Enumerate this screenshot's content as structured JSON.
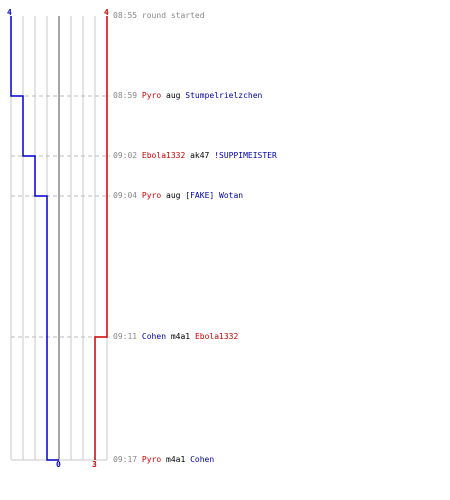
{
  "timeline": {
    "start_scores": {
      "blue": "4",
      "red": "4"
    },
    "end_scores": {
      "blue": "0",
      "red": "3"
    },
    "colors": {
      "blue": "#0000cc",
      "red": "#cc0000",
      "grid": "#c8c8c8",
      "center": "#888888",
      "dash": "#bbbbbb"
    },
    "chart_data": {
      "type": "line",
      "x_unit": "time (HH:MM)",
      "x": [
        "08:55",
        "08:59",
        "09:02",
        "09:04",
        "09:11",
        "09:17"
      ],
      "series": [
        {
          "name": "",
          "color": "#0000cc",
          "values": [
            4,
            3,
            2,
            1,
            1,
            0
          ]
        },
        {
          "name": "",
          "color": "#cc0000",
          "values": [
            4,
            4,
            4,
            4,
            3,
            3
          ]
        }
      ],
      "ylim": [
        0,
        4
      ]
    }
  },
  "events": [
    {
      "time": "08:55",
      "text": "round started"
    },
    {
      "time": "08:59",
      "killer": "Pyro",
      "weapon": "aug",
      "victim": "Stumpelrielzchen"
    },
    {
      "time": "09:02",
      "killer": "Ebola1332",
      "weapon": "ak47",
      "victim": "!SUPPIMEISTER"
    },
    {
      "time": "09:04",
      "killer": "Pyro",
      "weapon": "aug",
      "victim": "[FAKE] Wotan"
    },
    {
      "time": "09:11",
      "killer": "Cohen",
      "weapon": "m4a1",
      "victim": "Ebola1332"
    },
    {
      "time": "09:17",
      "killer": "Pyro",
      "weapon": "m4a1",
      "victim": "Cohen"
    }
  ]
}
